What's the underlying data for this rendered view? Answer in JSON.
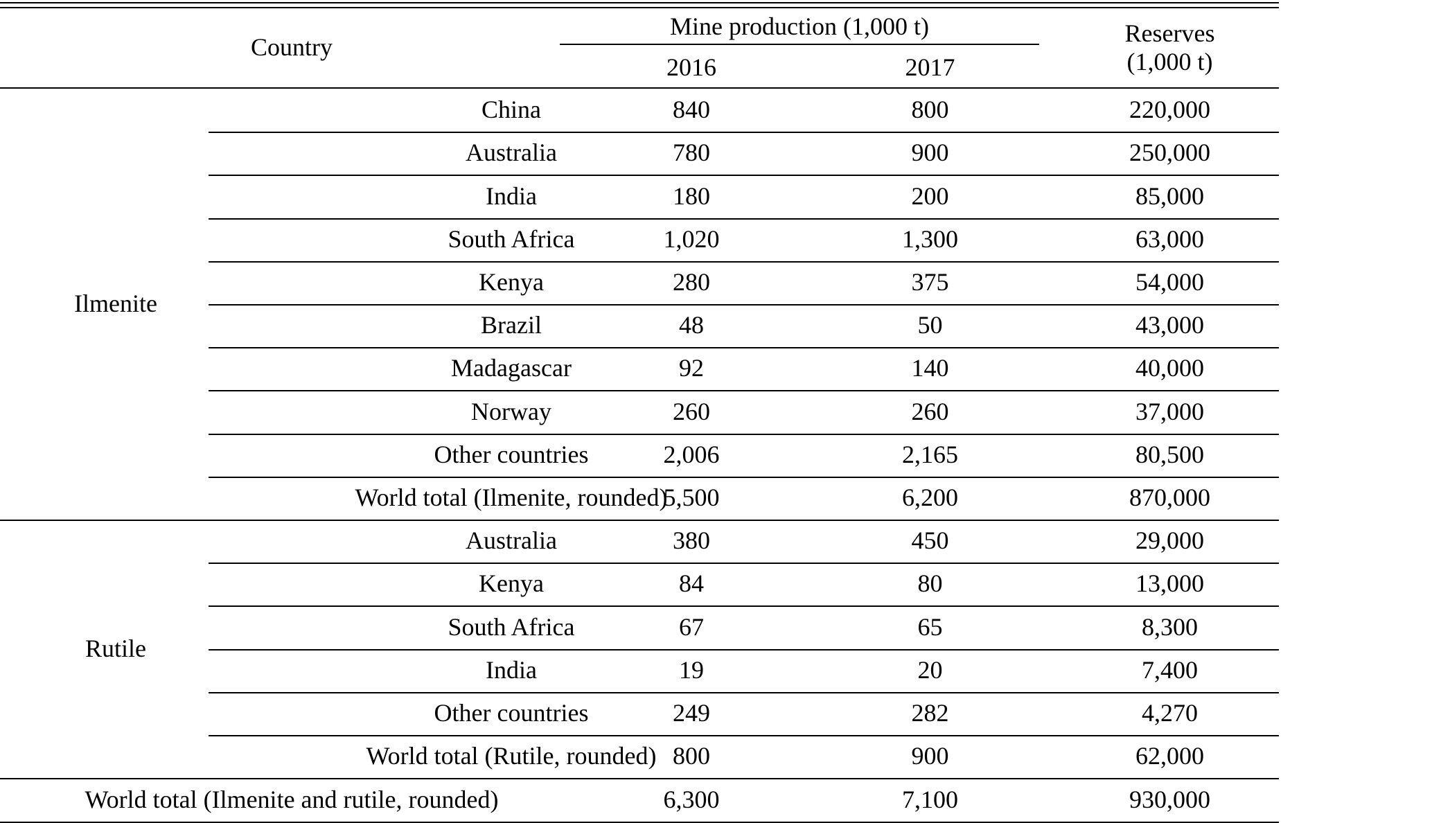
{
  "header": {
    "country": "Country",
    "mine_production": "Mine production (1,000 t)",
    "year_2016": "2016",
    "year_2017": "2017",
    "reserves_line1": "Reserves",
    "reserves_line2": "(1,000 t)"
  },
  "groups": [
    {
      "name": "Ilmenite",
      "rows": [
        {
          "country": "China",
          "y2016": "840",
          "y2017": "800",
          "reserves": "220,000"
        },
        {
          "country": "Australia",
          "y2016": "780",
          "y2017": "900",
          "reserves": "250,000"
        },
        {
          "country": "India",
          "y2016": "180",
          "y2017": "200",
          "reserves": "85,000"
        },
        {
          "country": "South Africa",
          "y2016": "1,020",
          "y2017": "1,300",
          "reserves": "63,000"
        },
        {
          "country": "Kenya",
          "y2016": "280",
          "y2017": "375",
          "reserves": "54,000"
        },
        {
          "country": "Brazil",
          "y2016": "48",
          "y2017": "50",
          "reserves": "43,000"
        },
        {
          "country": "Madagascar",
          "y2016": "92",
          "y2017": "140",
          "reserves": "40,000"
        },
        {
          "country": "Norway",
          "y2016": "260",
          "y2017": "260",
          "reserves": "37,000"
        },
        {
          "country": "Other countries",
          "y2016": "2,006",
          "y2017": "2,165",
          "reserves": "80,500"
        },
        {
          "country": "World total (Ilmenite, rounded)",
          "y2016": "5,500",
          "y2017": "6,200",
          "reserves": "870,000"
        }
      ]
    },
    {
      "name": "Rutile",
      "rows": [
        {
          "country": "Australia",
          "y2016": "380",
          "y2017": "450",
          "reserves": "29,000"
        },
        {
          "country": "Kenya",
          "y2016": "84",
          "y2017": "80",
          "reserves": "13,000"
        },
        {
          "country": "South Africa",
          "y2016": "67",
          "y2017": "65",
          "reserves": "8,300"
        },
        {
          "country": "India",
          "y2016": "19",
          "y2017": "20",
          "reserves": "7,400"
        },
        {
          "country": "Other countries",
          "y2016": "249",
          "y2017": "282",
          "reserves": "4,270"
        },
        {
          "country": "World total (Rutile, rounded)",
          "y2016": "800",
          "y2017": "900",
          "reserves": "62,000"
        }
      ]
    }
  ],
  "grand_total": {
    "label": "World total (Ilmenite and rutile, rounded)",
    "y2016": "6,300",
    "y2017": "7,100",
    "reserves": "930,000"
  }
}
